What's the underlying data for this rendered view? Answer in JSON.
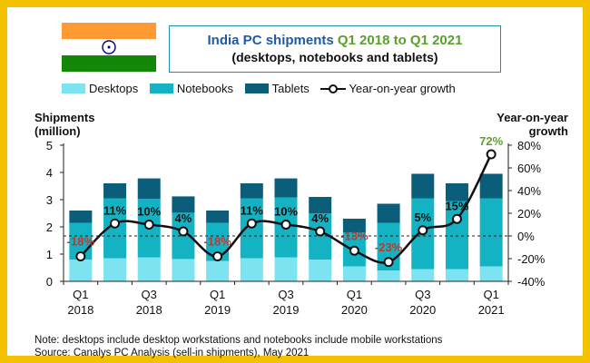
{
  "flag": {
    "icon": "india-flag-icon",
    "colors": {
      "saffron": "#ff9933",
      "white": "#ffffff",
      "green": "#138808",
      "wheel": "#000080"
    }
  },
  "title": {
    "line1_prefix": "India PC shipments ",
    "line1_dates": "Q1 2018 to Q1 2021",
    "line2": "(desktops, notebooks and tablets)"
  },
  "legend": {
    "desktops": "Desktops",
    "notebooks": "Notebooks",
    "tablets": "Tablets",
    "growth": "Year-on-year growth"
  },
  "axis_titles": {
    "left_line1": "Shipments",
    "left_line2": "(million)",
    "right_line1": "Year-on-year",
    "right_line2": "growth"
  },
  "footer": {
    "note": "Note: desktops include desktop workstations and notebooks include mobile workstations",
    "source": "Source: Canalys PC Analysis (sell-in shipments), May 2021"
  },
  "chart_data": {
    "type": "bar",
    "stacked": true,
    "categories": [
      "Q1 2018",
      "Q2 2018",
      "Q3 2018",
      "Q4 2018",
      "Q1 2019",
      "Q2 2019",
      "Q3 2019",
      "Q4 2019",
      "Q1 2020",
      "Q2 2020",
      "Q3 2020",
      "Q4 2020",
      "Q1 2021"
    ],
    "x_tick_labels": [
      {
        "index": 0,
        "line1": "Q1",
        "line2": "2018"
      },
      {
        "index": 2,
        "line1": "Q3",
        "line2": "2018"
      },
      {
        "index": 4,
        "line1": "Q1",
        "line2": "2019"
      },
      {
        "index": 6,
        "line1": "Q3",
        "line2": "2019"
      },
      {
        "index": 8,
        "line1": "Q1",
        "line2": "2020"
      },
      {
        "index": 10,
        "line1": "Q3",
        "line2": "2020"
      },
      {
        "index": 12,
        "line1": "Q1",
        "line2": "2021"
      }
    ],
    "series": [
      {
        "name": "Desktops",
        "color": "#7de3f0",
        "values": [
          0.8,
          0.85,
          0.88,
          0.82,
          0.75,
          0.85,
          0.88,
          0.8,
          0.55,
          0.4,
          0.45,
          0.45,
          0.55
        ]
      },
      {
        "name": "Notebooks",
        "color": "#14b3c4",
        "values": [
          1.35,
          2.2,
          2.15,
          1.7,
          1.4,
          2.2,
          2.2,
          1.7,
          1.25,
          1.75,
          2.6,
          2.5,
          2.5
        ]
      },
      {
        "name": "Tablets",
        "color": "#0b5e7a",
        "values": [
          0.45,
          0.55,
          0.75,
          0.6,
          0.45,
          0.55,
          0.7,
          0.6,
          0.5,
          0.7,
          0.9,
          0.65,
          0.9
        ]
      }
    ],
    "growth": {
      "name": "Year-on-year growth",
      "color": "#111111",
      "values": [
        -18,
        11,
        10,
        4,
        -18,
        11,
        10,
        4,
        -13,
        -23,
        5,
        15,
        72
      ],
      "labels": [
        "-18%",
        "11%",
        "10%",
        "4%",
        "-18%",
        "11%",
        "10%",
        "4%",
        "-13%",
        "-23%",
        "5%",
        "15%",
        "72%"
      ],
      "label_colors": [
        "#c0392b",
        "#111",
        "#111",
        "#111",
        "#c0392b",
        "#111",
        "#111",
        "#111",
        "#c0392b",
        "#c0392b",
        "#111",
        "#111",
        "#5aa02c"
      ]
    },
    "y_left": {
      "min": 0,
      "max": 5,
      "ticks": [
        0,
        1,
        2,
        3,
        4,
        5
      ]
    },
    "y_right": {
      "min": -40,
      "max": 80,
      "ticks": [
        -40,
        -20,
        0,
        20,
        40,
        60,
        80
      ],
      "tick_labels": [
        "-40%",
        "-20%",
        "0%",
        "20%",
        "40%",
        "60%",
        "80%"
      ]
    }
  }
}
